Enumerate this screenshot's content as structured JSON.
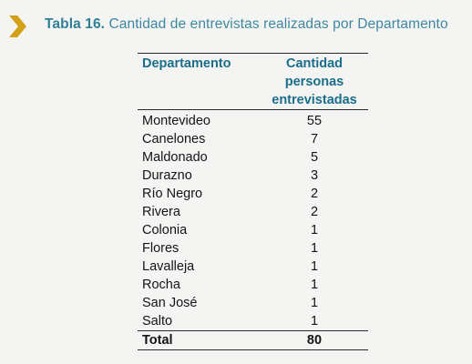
{
  "caption": {
    "label": "Tabla 16.",
    "title": "Cantidad de entrevistas realizadas por Departamento",
    "icon": "chevron-right-icon",
    "accent_color": "#2f7f97",
    "chevron_color": "#d4a017"
  },
  "table": {
    "headers": {
      "departamento": "Departamento",
      "cantidad_line1": "Cantidad",
      "cantidad_line2": "personas",
      "cantidad_line3": "entrevistadas"
    },
    "rows": [
      {
        "departamento": "Montevideo",
        "cantidad": "55"
      },
      {
        "departamento": "Canelones",
        "cantidad": "7"
      },
      {
        "departamento": "Maldonado",
        "cantidad": "5"
      },
      {
        "departamento": "Durazno",
        "cantidad": "3"
      },
      {
        "departamento": "Río Negro",
        "cantidad": "2"
      },
      {
        "departamento": "Rivera",
        "cantidad": "2"
      },
      {
        "departamento": "Colonia",
        "cantidad": "1"
      },
      {
        "departamento": "Flores",
        "cantidad": "1"
      },
      {
        "departamento": "Lavalleja",
        "cantidad": "1"
      },
      {
        "departamento": "Rocha",
        "cantidad": "1"
      },
      {
        "departamento": "San José",
        "cantidad": "1"
      },
      {
        "departamento": "Salto",
        "cantidad": "1"
      }
    ],
    "total": {
      "label": "Total",
      "value": "80"
    }
  }
}
